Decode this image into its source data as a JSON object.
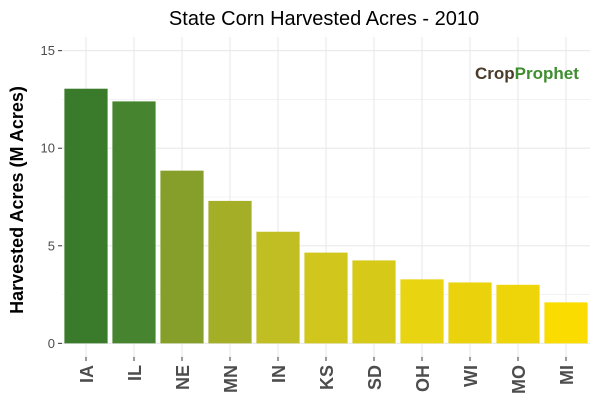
{
  "chart_data": {
    "type": "bar",
    "title": "State Corn Harvested Acres - 2010",
    "xlabel": "",
    "ylabel": "Harvested Acres (M Acres)",
    "categories": [
      "IA",
      "IL",
      "NE",
      "MN",
      "IN",
      "KS",
      "SD",
      "OH",
      "WI",
      "MO",
      "MI"
    ],
    "values": [
      13.05,
      12.4,
      8.85,
      7.3,
      5.72,
      4.65,
      4.25,
      3.28,
      3.12,
      3.0,
      2.1
    ],
    "bar_colors": [
      "#3a7a2b",
      "#468430",
      "#869f2a",
      "#a4ae27",
      "#c0be22",
      "#d1c61b",
      "#d7c917",
      "#e8d410",
      "#ead30d",
      "#eed50a",
      "#fbdc00"
    ],
    "yticks": [
      0,
      5,
      10,
      15
    ],
    "ylim": [
      -0.7,
      15.7
    ],
    "grid": true,
    "legend": "none",
    "background": "#ffffff",
    "gridline_color": "#ebebeb"
  },
  "logo": {
    "text_crop": "Crop",
    "text_prophet": "Prophet",
    "color_crop": "#4a3b2a",
    "color_prophet": "#3e8d2f"
  }
}
